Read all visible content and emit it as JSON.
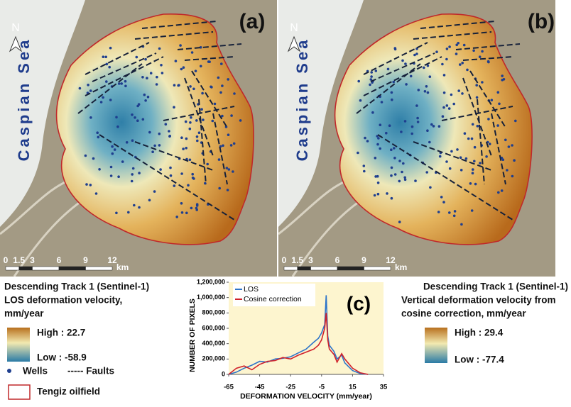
{
  "maps": [
    {
      "label": "(a)",
      "north": "N",
      "sea": "Caspian Sea",
      "scale_ticks": [
        0,
        1.5,
        3,
        6,
        9,
        12
      ],
      "scale_unit": "km"
    },
    {
      "label": "(b)",
      "north": "N",
      "sea": "Caspian Sea",
      "scale_ticks": [
        0,
        1.5,
        3,
        6,
        9,
        12
      ],
      "scale_unit": "km"
    }
  ],
  "legend_left": {
    "title": "Descending Track 1 (Sentinel-1)",
    "subtitle_1": "LOS deformation velocity,",
    "subtitle_2": "mm/year",
    "high": "High : 22.7",
    "low": "Low : -58.9",
    "wells": "Wells",
    "faults": "----- Faults",
    "oilfield": "Tengiz oilfield"
  },
  "legend_right": {
    "title": "Descending Track 1 (Sentinel-1)",
    "subtitle_1": "Vertical deformation velocity from",
    "subtitle_2": "cosine correction, mm/year",
    "high": "High : 29.4",
    "low": "Low : -77.4"
  },
  "chart_data": {
    "type": "line",
    "panel_label": "(c)",
    "x_label": "DEFORMATION VELOCITY (mm/year)",
    "y_label": "NUMBER OF PIXELS",
    "xlim": [
      -65,
      35
    ],
    "xticks": [
      -65,
      -45,
      -25,
      -5,
      15,
      35
    ],
    "ylim": [
      0,
      1200000
    ],
    "yticks": [
      0,
      {
        "value": 200000,
        "label": "200,000"
      },
      {
        "value": 400000,
        "label": "400,000"
      },
      {
        "value": 600000,
        "label": "600,000"
      },
      {
        "value": 800000,
        "label": "800,000"
      },
      {
        "value": 1000000,
        "label": "1,000,000"
      },
      {
        "value": 1200000,
        "label": "1,200,000"
      }
    ],
    "x": [
      -65,
      -60,
      -55,
      -50,
      -45,
      -40,
      -35,
      -30,
      -25,
      -20,
      -15,
      -10,
      -7,
      -5,
      -3,
      -2,
      -1,
      0,
      3,
      5,
      8,
      10,
      15,
      20,
      25
    ],
    "series": [
      {
        "name": "LOS",
        "color": "#2e75c9",
        "values": [
          0,
          30000,
          80000,
          120000,
          170000,
          160000,
          200000,
          210000,
          230000,
          280000,
          330000,
          420000,
          470000,
          540000,
          650000,
          1030000,
          500000,
          380000,
          300000,
          200000,
          250000,
          150000,
          50000,
          10000,
          0
        ]
      },
      {
        "name": "Cosine correction",
        "color": "#d0202a",
        "values": [
          0,
          80000,
          110000,
          60000,
          130000,
          170000,
          180000,
          220000,
          200000,
          250000,
          290000,
          330000,
          380000,
          450000,
          600000,
          800000,
          450000,
          330000,
          260000,
          160000,
          270000,
          200000,
          80000,
          20000,
          0
        ]
      }
    ]
  }
}
